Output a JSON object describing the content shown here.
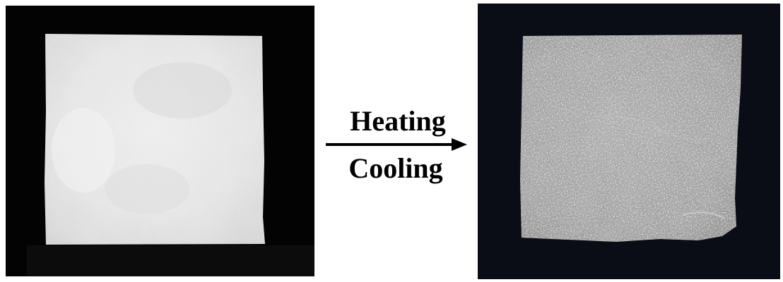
{
  "figure": {
    "process": {
      "top_label": "Heating",
      "bottom_label": "Cooling",
      "arrow_direction": "right"
    },
    "panels": [
      {
        "state": "before",
        "background": "#000000",
        "sample_color": "#e6e6e6"
      },
      {
        "state": "after",
        "background": "#0a0c14",
        "sample_color": "#a3a3a3"
      }
    ]
  }
}
